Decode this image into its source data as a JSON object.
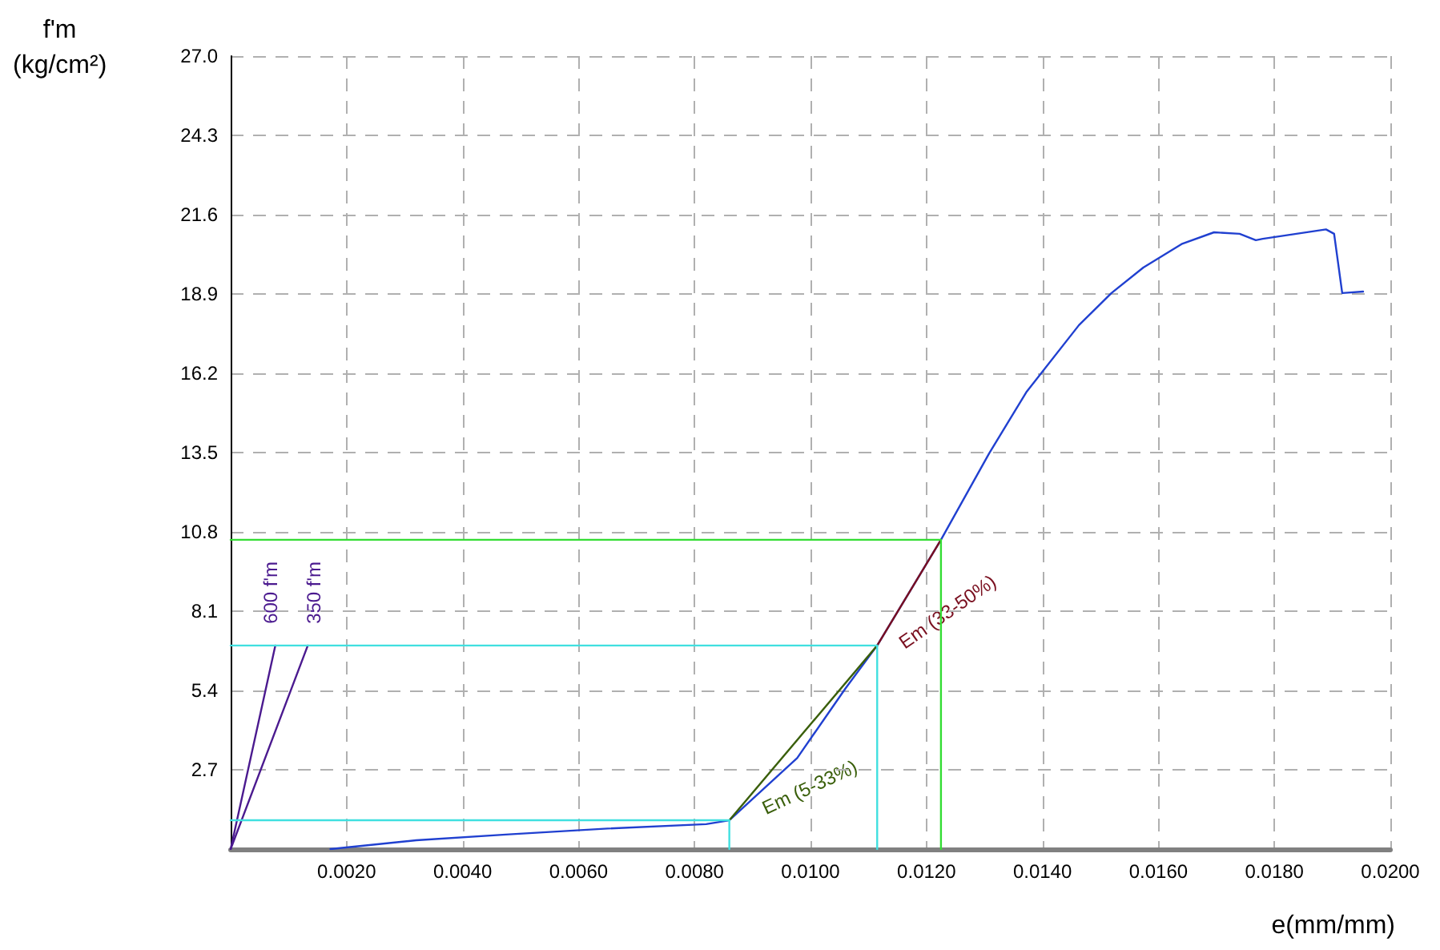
{
  "chart_data": {
    "type": "line",
    "xlabel": "e(mm/mm)",
    "ylabel": "f'm\n(kg/cm²)",
    "xlim": [
      0,
      0.02
    ],
    "ylim": [
      0,
      27
    ],
    "xticks": [
      {
        "value": 0,
        "label": null
      },
      {
        "value": 0.002,
        "label": "0.0020"
      },
      {
        "value": 0.004,
        "label": "0.0040"
      },
      {
        "value": 0.006,
        "label": "0.0060"
      },
      {
        "value": 0.008,
        "label": "0.0080"
      },
      {
        "value": 0.01,
        "label": "0.0100"
      },
      {
        "value": 0.012,
        "label": "0.0120"
      },
      {
        "value": 0.014,
        "label": "0.0140"
      },
      {
        "value": 0.016,
        "label": "0.0160"
      },
      {
        "value": 0.018,
        "label": "0.0180"
      },
      {
        "value": 0.02,
        "label": "0.0200"
      }
    ],
    "yticks": [
      {
        "value": 0,
        "label": null
      },
      {
        "value": 2.7,
        "label": "2.7"
      },
      {
        "value": 5.4,
        "label": "5.4"
      },
      {
        "value": 8.1,
        "label": "8.1"
      },
      {
        "value": 10.8,
        "label": "10.8"
      },
      {
        "value": 13.5,
        "label": "13.5"
      },
      {
        "value": 16.2,
        "label": "16.2"
      },
      {
        "value": 18.9,
        "label": "18.9"
      },
      {
        "value": 21.6,
        "label": "21.6"
      },
      {
        "value": 24.3,
        "label": "24.3"
      },
      {
        "value": 27,
        "label": "27.0"
      }
    ],
    "grid": true,
    "legend": false,
    "marker": "none",
    "line_style": "solid",
    "series": [
      {
        "color": "#2040d0",
        "x": [
          0.00172,
          0.0032,
          0.0048,
          0.0065,
          0.0082,
          0.0086,
          0.00977,
          0.0106,
          0.01115,
          0.01225,
          0.01308,
          0.01372,
          0.01463,
          0.01519,
          0.01574,
          0.0164,
          0.01696,
          0.0174,
          0.01768,
          0.0178,
          0.01889,
          0.01903,
          0.01917,
          0.01953
        ],
        "values": [
          0,
          0.3,
          0.5,
          0.7,
          0.85,
          0.98,
          3.1,
          5.46,
          6.93,
          10.53,
          13.47,
          15.55,
          17.84,
          18.93,
          19.8,
          20.6,
          21.0,
          20.95,
          20.73,
          20.78,
          21.1,
          20.95,
          18.93,
          18.98
        ]
      },
      {
        "name": "600 f'm",
        "color": "#4b1a8f",
        "x": [
          0,
          0.00077
        ],
        "values": [
          0,
          6.93
        ]
      },
      {
        "name": "350 f'm",
        "color": "#4b1a8f",
        "x": [
          0,
          0.00133
        ],
        "values": [
          0,
          6.93
        ]
      },
      {
        "name": "Em (5-33%)",
        "color": "#3a5f0b",
        "x": [
          0.0086,
          0.01115
        ],
        "values": [
          0.98,
          6.93
        ]
      },
      {
        "name": "Em (33-50%)",
        "color": "#7a1020",
        "x": [
          0.01115,
          0.01225
        ],
        "values": [
          6.93,
          10.53
        ]
      },
      {
        "color": "#40e0e0",
        "x": [
          0,
          0.0086
        ],
        "values": [
          0.98,
          0.98
        ]
      },
      {
        "color": "#40e0e0",
        "x": [
          0.0086,
          0.0086
        ],
        "values": [
          0,
          0.98
        ]
      },
      {
        "color": "#40e0e0",
        "x": [
          0,
          0.01115
        ],
        "values": [
          6.93,
          6.93
        ]
      },
      {
        "color": "#40e0e0",
        "x": [
          0.01115,
          0.01115
        ],
        "values": [
          0,
          6.93
        ]
      },
      {
        "color": "#33dd33",
        "x": [
          0,
          0.01225
        ],
        "values": [
          10.53,
          10.53
        ]
      },
      {
        "color": "#33dd33",
        "x": [
          0.01225,
          0.01225
        ],
        "values": [
          0,
          10.53
        ]
      }
    ]
  }
}
